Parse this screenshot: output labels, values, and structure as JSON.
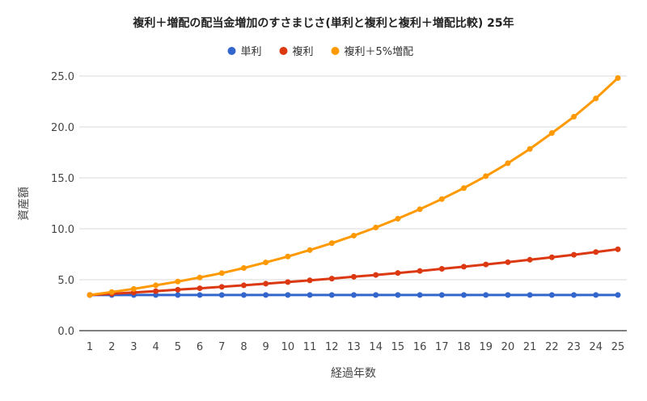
{
  "chart_data": {
    "type": "line",
    "title": "複利＋増配の配当金増加のすさまじさ(単利と複利と複利＋増配比較) 25年",
    "xlabel": "経過年数",
    "ylabel": "資産額",
    "x": [
      1,
      2,
      3,
      4,
      5,
      6,
      7,
      8,
      9,
      10,
      11,
      12,
      13,
      14,
      15,
      16,
      17,
      18,
      19,
      20,
      21,
      22,
      23,
      24,
      25
    ],
    "ylim": [
      0,
      25
    ],
    "yticks": [
      "0.0",
      "5.0",
      "10.0",
      "15.0",
      "20.0",
      "25.0"
    ],
    "grid": true,
    "legend_position": "top",
    "series": [
      {
        "name": "単利",
        "color": "#3366cc",
        "values": [
          3.5,
          3.5,
          3.5,
          3.5,
          3.5,
          3.5,
          3.5,
          3.5,
          3.5,
          3.5,
          3.5,
          3.5,
          3.5,
          3.5,
          3.5,
          3.5,
          3.5,
          3.5,
          3.5,
          3.5,
          3.5,
          3.5,
          3.5,
          3.5,
          3.5
        ]
      },
      {
        "name": "複利",
        "color": "#dc3912",
        "values": [
          3.5,
          3.62,
          3.75,
          3.88,
          4.02,
          4.16,
          4.3,
          4.45,
          4.61,
          4.77,
          4.94,
          5.11,
          5.29,
          5.47,
          5.66,
          5.86,
          6.07,
          6.28,
          6.5,
          6.72,
          6.96,
          7.2,
          7.45,
          7.72,
          7.99
        ]
      },
      {
        "name": "複利＋5%増配",
        "color": "#ff9900",
        "values": [
          3.5,
          3.79,
          4.1,
          4.45,
          4.82,
          5.22,
          5.65,
          6.15,
          6.7,
          7.28,
          7.91,
          8.59,
          9.33,
          10.13,
          10.99,
          11.92,
          12.92,
          14.0,
          15.17,
          16.44,
          17.84,
          19.4,
          21.0,
          22.8,
          24.8
        ]
      }
    ]
  }
}
